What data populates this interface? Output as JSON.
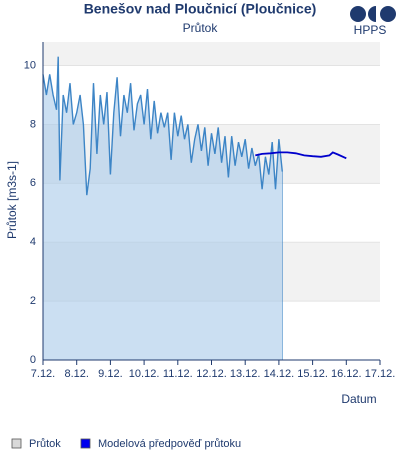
{
  "chart_data": {
    "type": "line",
    "title": "Benešov nad Ploučnicí (Ploučnice)",
    "subtitle": "Průtok",
    "logo": "HPPS",
    "y_label": "Průtok [m3s-1]",
    "x_label": "Datum",
    "xlim": [
      7,
      17
    ],
    "xticks": [
      {
        "value": 7,
        "label": "7.12."
      },
      {
        "value": 8,
        "label": "8.12."
      },
      {
        "value": 9,
        "label": "9.12."
      },
      {
        "value": 10,
        "label": "10.12."
      },
      {
        "value": 11,
        "label": "11.12."
      },
      {
        "value": 12,
        "label": "12.12."
      },
      {
        "value": 13,
        "label": "13.12."
      },
      {
        "value": 14,
        "label": "14.12."
      },
      {
        "value": 15,
        "label": "15.12."
      },
      {
        "value": 16,
        "label": "16.12."
      },
      {
        "value": 17,
        "label": "17.12."
      }
    ],
    "ylim": [
      0,
      10.8
    ],
    "yticks": [
      0,
      2,
      4,
      6,
      8,
      10
    ],
    "banded_grid": true,
    "legend": "bottom-left",
    "series": [
      {
        "name": "Průtok",
        "color": "#3d85c6",
        "fill": "#a9c9ea",
        "legend_color": "#d9d9d9",
        "area": true,
        "x": [
          7.0,
          7.1,
          7.2,
          7.3,
          7.4,
          7.45,
          7.5,
          7.6,
          7.7,
          7.8,
          7.9,
          8.0,
          8.1,
          8.2,
          8.3,
          8.4,
          8.5,
          8.6,
          8.7,
          8.8,
          8.9,
          9.0,
          9.1,
          9.2,
          9.3,
          9.4,
          9.5,
          9.6,
          9.7,
          9.8,
          9.9,
          10.0,
          10.1,
          10.2,
          10.3,
          10.4,
          10.5,
          10.6,
          10.7,
          10.8,
          10.9,
          11.0,
          11.1,
          11.2,
          11.3,
          11.4,
          11.5,
          11.6,
          11.7,
          11.8,
          11.9,
          12.0,
          12.1,
          12.2,
          12.3,
          12.4,
          12.5,
          12.6,
          12.7,
          12.8,
          12.9,
          13.0,
          13.1,
          13.2,
          13.3,
          13.4,
          13.5,
          13.6,
          13.7,
          13.8,
          13.9,
          14.0,
          14.1
        ],
        "values": [
          9.7,
          9.0,
          9.7,
          9.0,
          8.5,
          10.3,
          6.1,
          9.0,
          8.4,
          9.4,
          8.0,
          8.4,
          9.0,
          8.0,
          5.6,
          6.5,
          9.4,
          7.0,
          9.0,
          8.0,
          9.1,
          6.3,
          8.4,
          9.6,
          7.6,
          9.0,
          8.4,
          9.4,
          7.8,
          8.7,
          9.0,
          8.0,
          9.2,
          7.5,
          8.8,
          7.7,
          8.4,
          7.9,
          8.4,
          6.8,
          8.4,
          7.6,
          8.3,
          7.5,
          8.0,
          6.7,
          7.5,
          8.0,
          7.1,
          7.9,
          6.6,
          7.7,
          7.0,
          7.9,
          6.7,
          7.6,
          6.2,
          7.6,
          6.6,
          7.4,
          6.9,
          7.5,
          6.5,
          7.2,
          6.6,
          7.0,
          5.8,
          6.9,
          6.3,
          7.4,
          5.8,
          7.5,
          6.4
        ]
      },
      {
        "name": "Modelová předpověď průtoku",
        "color": "#0000cc",
        "legend_color": "#0000ee",
        "area": false,
        "x": [
          13.3,
          13.5,
          13.75,
          14.0,
          14.25,
          14.5,
          14.75,
          15.0,
          15.25,
          15.5,
          15.6,
          15.75,
          16.0
        ],
        "values": [
          6.95,
          7.0,
          7.02,
          7.05,
          7.05,
          7.02,
          6.95,
          6.92,
          6.9,
          6.95,
          7.05,
          6.98,
          6.85
        ]
      }
    ]
  }
}
